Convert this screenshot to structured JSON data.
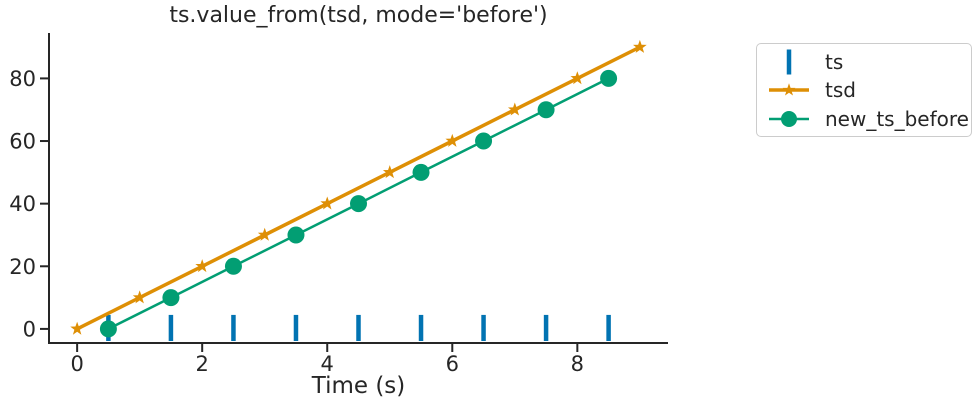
{
  "chart_data": {
    "type": "line",
    "title": "ts.value_from(tsd, mode='before')",
    "xlabel": "Time (s)",
    "ylabel": "",
    "xlim": [
      -0.45,
      9.45
    ],
    "ylim": [
      -4.5,
      94.5
    ],
    "x_ticks": [
      0,
      2,
      4,
      6,
      8
    ],
    "y_ticks": [
      0,
      20,
      40,
      60,
      80
    ],
    "grid": false,
    "legend_position": "outside-upper-right",
    "axis_color": "#262626",
    "text_color": "#262626",
    "legend_border_color": "#cccccc",
    "background": "#ffffff",
    "series": [
      {
        "name": "ts",
        "render": "events",
        "marker": "vline",
        "color": "#0173b2",
        "x": [
          0.5,
          1.5,
          2.5,
          3.5,
          4.5,
          5.5,
          6.5,
          7.5,
          8.5
        ],
        "y": [
          0,
          0,
          0,
          0,
          0,
          0,
          0,
          0,
          0
        ]
      },
      {
        "name": "tsd",
        "render": "line",
        "marker": "star",
        "color": "#de8f05",
        "x": [
          0,
          1,
          2,
          3,
          4,
          5,
          6,
          7,
          8,
          9
        ],
        "y": [
          0,
          10,
          20,
          30,
          40,
          50,
          60,
          70,
          80,
          90
        ]
      },
      {
        "name": "new_ts_before",
        "render": "line",
        "marker": "circle",
        "color": "#029e73",
        "x": [
          0.5,
          1.5,
          2.5,
          3.5,
          4.5,
          5.5,
          6.5,
          7.5,
          8.5
        ],
        "y": [
          0,
          10,
          20,
          30,
          40,
          50,
          60,
          70,
          80
        ]
      }
    ]
  }
}
